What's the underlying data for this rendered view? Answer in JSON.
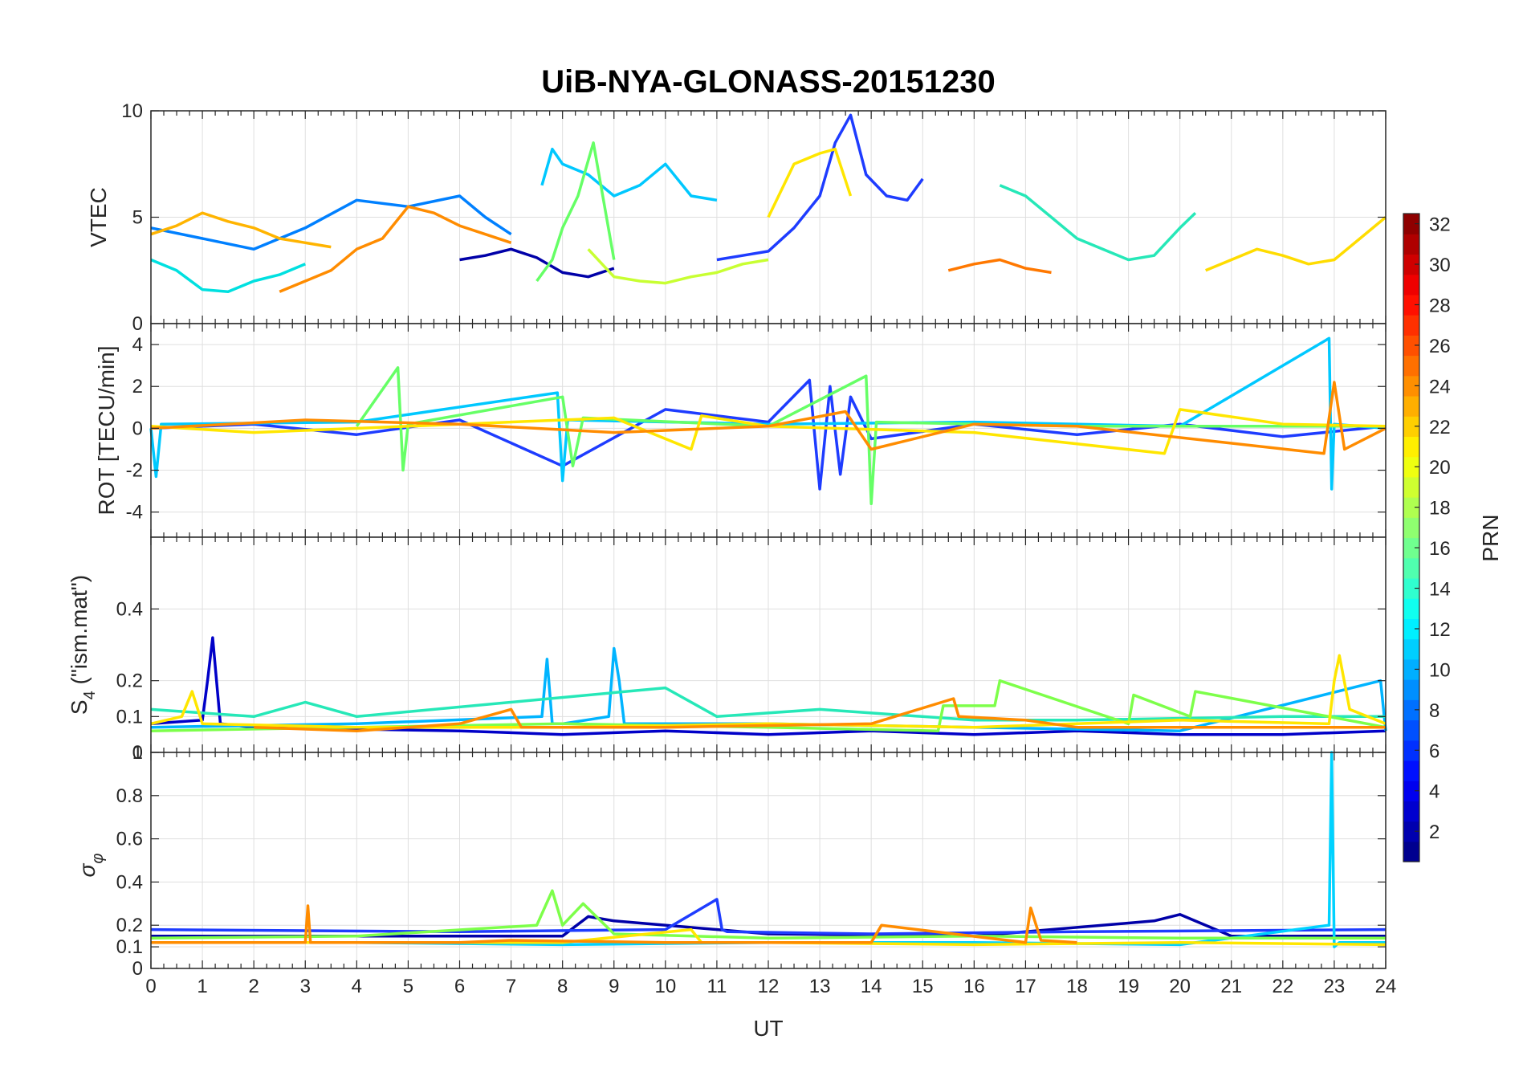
{
  "chart_data": {
    "type": "line",
    "title": "UiB-NYA-GLONASS-20151230",
    "xlabel": "UT",
    "xlim": [
      0,
      24
    ],
    "xticks": [
      "0",
      "1",
      "2",
      "3",
      "4",
      "5",
      "6",
      "7",
      "8",
      "9",
      "10",
      "11",
      "12",
      "13",
      "14",
      "15",
      "16",
      "17",
      "18",
      "19",
      "20",
      "21",
      "22",
      "23",
      "24"
    ],
    "grid": true,
    "panels": [
      {
        "id": "vtec",
        "ylabel": "VTEC",
        "ylim": [
          0,
          10
        ],
        "yticks": [
          "0",
          "5",
          "10"
        ],
        "ytick_values": [
          0,
          5,
          10
        ],
        "series": [
          {
            "color": "#0000a8",
            "x": [
              6.0,
              6.5,
              7.0,
              7.5,
              8.0,
              8.5,
              9.0
            ],
            "y": [
              3.0,
              3.2,
              3.5,
              3.1,
              2.4,
              2.2,
              2.6
            ]
          },
          {
            "color": "#1e3cff",
            "x": [
              11.0,
              11.5,
              12.0,
              12.5,
              13.0,
              13.3,
              13.6,
              13.9,
              14.3,
              14.7,
              15.0
            ],
            "y": [
              3.0,
              3.2,
              3.4,
              4.5,
              6.0,
              8.5,
              9.8,
              7.0,
              6.0,
              5.8,
              6.8
            ]
          },
          {
            "color": "#0080ff",
            "x": [
              0.0,
              1.0,
              2.0,
              3.0,
              4.0,
              5.0,
              6.0,
              6.5,
              7.0
            ],
            "y": [
              4.5,
              4.0,
              3.5,
              4.5,
              5.8,
              5.5,
              6.0,
              5.0,
              4.2
            ]
          },
          {
            "color": "#00c8ff",
            "x": [
              7.6,
              7.8,
              8.0,
              8.5,
              9.0,
              9.5,
              10.0,
              10.5,
              11.0
            ],
            "y": [
              6.5,
              8.2,
              7.5,
              7.0,
              6.0,
              6.5,
              7.5,
              6.0,
              5.8
            ]
          },
          {
            "color": "#00e0e0",
            "x": [
              0.0,
              0.5,
              1.0,
              1.5,
              2.0,
              2.5,
              3.0
            ],
            "y": [
              3.0,
              2.5,
              1.6,
              1.5,
              2.0,
              2.3,
              2.8
            ]
          },
          {
            "color": "#26e8b8",
            "x": [
              16.5,
              17.0,
              17.5,
              18.0,
              18.5,
              19.0,
              19.5,
              20.0,
              20.3
            ],
            "y": [
              6.5,
              6.0,
              5.0,
              4.0,
              3.5,
              3.0,
              3.2,
              4.5,
              5.2
            ]
          },
          {
            "color": "#66ff66",
            "x": [
              7.5,
              7.8,
              8.0,
              8.3,
              8.6,
              9.0
            ],
            "y": [
              2.0,
              3.0,
              4.5,
              6.0,
              8.5,
              3.0
            ]
          },
          {
            "color": "#c8ff32",
            "x": [
              8.5,
              9.0,
              9.5,
              10.0,
              10.5,
              11.0,
              11.5,
              12.0
            ],
            "y": [
              3.5,
              2.2,
              2.0,
              1.9,
              2.2,
              2.4,
              2.8,
              3.0
            ]
          },
          {
            "color": "#ffe600",
            "x": [
              12.0,
              12.5,
              13.0,
              13.3,
              13.6
            ],
            "y": [
              5.0,
              7.5,
              8.0,
              8.2,
              6.0
            ]
          },
          {
            "color": "#ffb400",
            "x": [
              0.0,
              0.5,
              1.0,
              1.5,
              2.0,
              2.5,
              3.0,
              3.5
            ],
            "y": [
              4.2,
              4.6,
              5.2,
              4.8,
              4.5,
              4.0,
              3.8,
              3.6
            ]
          },
          {
            "color": "#ff8c00",
            "x": [
              2.5,
              3.0,
              3.5,
              4.0,
              4.5,
              5.0,
              5.5,
              6.0,
              6.5,
              7.0
            ],
            "y": [
              1.5,
              2.0,
              2.5,
              3.5,
              4.0,
              5.5,
              5.2,
              4.6,
              4.2,
              3.8
            ]
          },
          {
            "color": "#ff7800",
            "x": [
              15.5,
              16.0,
              16.5,
              17.0,
              17.5
            ],
            "y": [
              2.5,
              2.8,
              3.0,
              2.6,
              2.4
            ]
          },
          {
            "color": "#ffdc00",
            "x": [
              20.5,
              21.0,
              21.5,
              22.0,
              22.5,
              23.0,
              23.5,
              24.0
            ],
            "y": [
              2.5,
              3.0,
              3.5,
              3.2,
              2.8,
              3.0,
              4.0,
              5.0
            ]
          }
        ]
      },
      {
        "id": "rot",
        "ylabel": "ROT [TECU/min]",
        "ylim": [
          -5.2,
          5
        ],
        "yticks": [
          "-4",
          "-2",
          "0",
          "2",
          "4"
        ],
        "ytick_values": [
          -4,
          -2,
          0,
          2,
          4
        ],
        "series": [
          {
            "color": "#1e3cff",
            "x": [
              0,
              2,
              4,
              6,
              8,
              10,
              12,
              12.8,
              13.0,
              13.2,
              13.4,
              13.6,
              14.0,
              16,
              18,
              20,
              22,
              24
            ],
            "y": [
              0,
              0.2,
              -0.3,
              0.4,
              -1.8,
              0.9,
              0.3,
              2.3,
              -2.9,
              2.0,
              -2.2,
              1.5,
              -0.5,
              0.2,
              -0.3,
              0.2,
              -0.4,
              0.1
            ]
          },
          {
            "color": "#00c8ff",
            "x": [
              0,
              0.1,
              0.2,
              4,
              7.9,
              8.0,
              8.1,
              12,
              16,
              20,
              22.9,
              22.95,
              23.0,
              24
            ],
            "y": [
              0,
              -2.3,
              0.2,
              0.3,
              1.7,
              -2.5,
              0.4,
              0.2,
              0.3,
              0.1,
              4.3,
              -2.9,
              0.2,
              0
            ]
          },
          {
            "color": "#66ff66",
            "x": [
              4,
              4.8,
              4.9,
              5.0,
              8,
              8.2,
              8.4,
              12,
              13.9,
              14.0,
              14.1,
              18,
              24
            ],
            "y": [
              0.1,
              2.9,
              -2.0,
              0.2,
              1.5,
              -1.8,
              0.5,
              0.1,
              2.5,
              -3.6,
              0.3,
              0.1,
              0.1
            ]
          },
          {
            "color": "#ffe600",
            "x": [
              0,
              2,
              6,
              9,
              10.5,
              10.7,
              12,
              16,
              19.7,
              20.0,
              22,
              24
            ],
            "y": [
              0.1,
              -0.2,
              0.2,
              0.5,
              -1.0,
              0.6,
              0.1,
              -0.2,
              -1.2,
              0.9,
              0.2,
              0.1
            ]
          },
          {
            "color": "#ff8c00",
            "x": [
              0,
              3,
              6,
              9,
              12,
              13.5,
              14,
              16,
              18,
              22.8,
              23.0,
              23.2,
              24
            ],
            "y": [
              0,
              0.4,
              0.2,
              -0.2,
              0.1,
              0.8,
              -1.0,
              0.2,
              0.1,
              -1.2,
              2.2,
              -1.0,
              0
            ]
          }
        ]
      },
      {
        "id": "s4",
        "ylabel": "S4 (\"ism.mat\")",
        "ylabel_main": "S",
        "ylabel_sub": "4",
        "ylabel_rest": "(\"ism.mat\")",
        "ylim": [
          0,
          0.6
        ],
        "yticks": [
          "0",
          "0.1",
          "0.2",
          "0.4"
        ],
        "ytick_values": [
          0,
          0.1,
          0.2,
          0.4
        ],
        "series": [
          {
            "color": "#0000c8",
            "x": [
              0,
              1.0,
              1.1,
              1.2,
              1.35,
              2,
              6,
              8,
              10,
              12,
              14,
              16,
              18,
              20,
              22,
              24
            ],
            "y": [
              0.08,
              0.09,
              0.2,
              0.32,
              0.08,
              0.07,
              0.06,
              0.05,
              0.06,
              0.05,
              0.06,
              0.05,
              0.06,
              0.05,
              0.05,
              0.06
            ]
          },
          {
            "color": "#00b4ff",
            "x": [
              0,
              4,
              7.6,
              7.7,
              7.8,
              8,
              8.9,
              9.0,
              9.1,
              9.2,
              12,
              16,
              20,
              23.9,
              24
            ],
            "y": [
              0.07,
              0.08,
              0.1,
              0.26,
              0.08,
              0.08,
              0.1,
              0.29,
              0.2,
              0.08,
              0.08,
              0.07,
              0.06,
              0.2,
              0.06
            ]
          },
          {
            "color": "#26e8b8",
            "x": [
              0,
              2,
              3,
              4,
              10,
              11,
              13,
              14,
              16,
              18,
              22,
              24
            ],
            "y": [
              0.12,
              0.1,
              0.14,
              0.1,
              0.18,
              0.1,
              0.12,
              0.11,
              0.09,
              0.09,
              0.1,
              0.1
            ]
          },
          {
            "color": "#7dff4a",
            "x": [
              0,
              4,
              8,
              12,
              15.3,
              15.4,
              16.4,
              16.5,
              19.0,
              19.1,
              20.2,
              20.3,
              24
            ],
            "y": [
              0.06,
              0.07,
              0.08,
              0.07,
              0.06,
              0.13,
              0.13,
              0.2,
              0.08,
              0.16,
              0.1,
              0.17,
              0.07
            ]
          },
          {
            "color": "#ffe600",
            "x": [
              0,
              0.6,
              0.8,
              1,
              4,
              8,
              12,
              16,
              20,
              22.9,
              23.0,
              23.1,
              23.3,
              24
            ],
            "y": [
              0.08,
              0.1,
              0.17,
              0.08,
              0.07,
              0.07,
              0.08,
              0.07,
              0.09,
              0.08,
              0.2,
              0.27,
              0.12,
              0.08
            ]
          },
          {
            "color": "#ff8c00",
            "x": [
              2,
              4,
              6,
              7.0,
              7.2,
              10,
              14,
              15.6,
              15.7,
              17,
              18,
              24
            ],
            "y": [
              0.07,
              0.06,
              0.08,
              0.12,
              0.07,
              0.07,
              0.08,
              0.15,
              0.1,
              0.09,
              0.07,
              0.07
            ]
          }
        ]
      },
      {
        "id": "sigma",
        "ylabel": "σφ",
        "ylabel_main": "σ",
        "ylabel_sub": "φ",
        "ylim": [
          0,
          1
        ],
        "yticks": [
          "0",
          "0.1",
          "0.2",
          "0.4",
          "0.6",
          "0.8",
          "1"
        ],
        "ytick_values": [
          0,
          0.1,
          0.2,
          0.4,
          0.6,
          0.8,
          1
        ],
        "series": [
          {
            "color": "#0000a8",
            "x": [
              0,
              4,
              8,
              8.5,
              9,
              12,
              16,
              19.5,
              20.0,
              20.5,
              21,
              24
            ],
            "y": [
              0.15,
              0.15,
              0.15,
              0.24,
              0.22,
              0.16,
              0.15,
              0.22,
              0.25,
              0.2,
              0.15,
              0.15
            ]
          },
          {
            "color": "#1e3cff",
            "x": [
              0,
              6,
              10,
              11.0,
              11.1,
              11.2,
              14,
              18,
              24
            ],
            "y": [
              0.18,
              0.17,
              0.18,
              0.32,
              0.18,
              0.17,
              0.16,
              0.17,
              0.18
            ]
          },
          {
            "color": "#00d2ff",
            "x": [
              0,
              4,
              8,
              12,
              16,
              20,
              22.9,
              22.95,
              23.0,
              23.1,
              24
            ],
            "y": [
              0.12,
              0.12,
              0.11,
              0.12,
              0.12,
              0.11,
              0.2,
              1.0,
              0.1,
              0.12,
              0.12
            ]
          },
          {
            "color": "#7dff4a",
            "x": [
              0,
              4,
              7.5,
              7.8,
              8,
              8.4,
              9,
              12,
              16,
              20,
              24
            ],
            "y": [
              0.14,
              0.15,
              0.2,
              0.36,
              0.2,
              0.3,
              0.16,
              0.14,
              0.15,
              0.14,
              0.14
            ]
          },
          {
            "color": "#ffe600",
            "x": [
              0,
              4,
              8,
              10.5,
              10.7,
              12,
              16,
              20,
              24
            ],
            "y": [
              0.12,
              0.12,
              0.12,
              0.18,
              0.12,
              0.12,
              0.11,
              0.12,
              0.11
            ]
          },
          {
            "color": "#ff8c00",
            "x": [
              0,
              2.5,
              3.0,
              3.05,
              3.1,
              6,
              7.0,
              10,
              14,
              14.2,
              17.0,
              17.1,
              17.3,
              18
            ],
            "y": [
              0.12,
              0.12,
              0.12,
              0.29,
              0.12,
              0.12,
              0.13,
              0.12,
              0.12,
              0.2,
              0.12,
              0.28,
              0.13,
              0.12
            ]
          }
        ]
      }
    ],
    "colorbar": {
      "label": "PRN",
      "range": [
        1,
        32
      ],
      "ticks": [
        "2",
        "4",
        "6",
        "8",
        "10",
        "12",
        "14",
        "16",
        "18",
        "20",
        "22",
        "24",
        "26",
        "28",
        "30",
        "32"
      ],
      "tick_values": [
        2,
        4,
        6,
        8,
        10,
        12,
        14,
        16,
        18,
        20,
        22,
        24,
        26,
        28,
        30,
        32
      ],
      "colormap": "jet"
    }
  }
}
